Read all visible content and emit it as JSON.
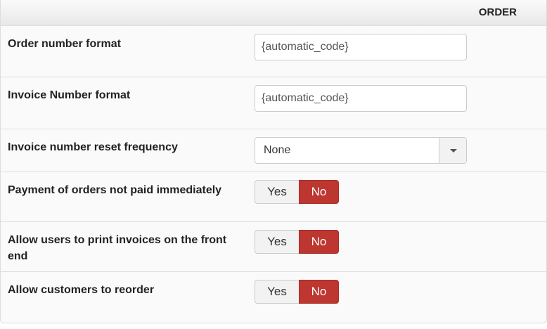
{
  "header": {
    "title": "ORDER"
  },
  "colors": {
    "active_no": "#bd362f"
  },
  "rows": [
    {
      "label": "Order number format",
      "type": "input",
      "value": "{automatic_code}"
    },
    {
      "label": "Invoice Number format",
      "type": "input",
      "value": "{automatic_code}"
    },
    {
      "label": "Invoice number reset frequency",
      "type": "select",
      "value": "None",
      "icon": "caret-down-icon"
    },
    {
      "label": "Payment of orders not paid immediately",
      "type": "toggle",
      "yes": "Yes",
      "no": "No",
      "selected": "No"
    },
    {
      "label": "Allow users to print invoices on the front end",
      "type": "toggle",
      "yes": "Yes",
      "no": "No",
      "selected": "No"
    },
    {
      "label": "Allow customers to reorder",
      "type": "toggle",
      "yes": "Yes",
      "no": "No",
      "selected": "No"
    }
  ]
}
